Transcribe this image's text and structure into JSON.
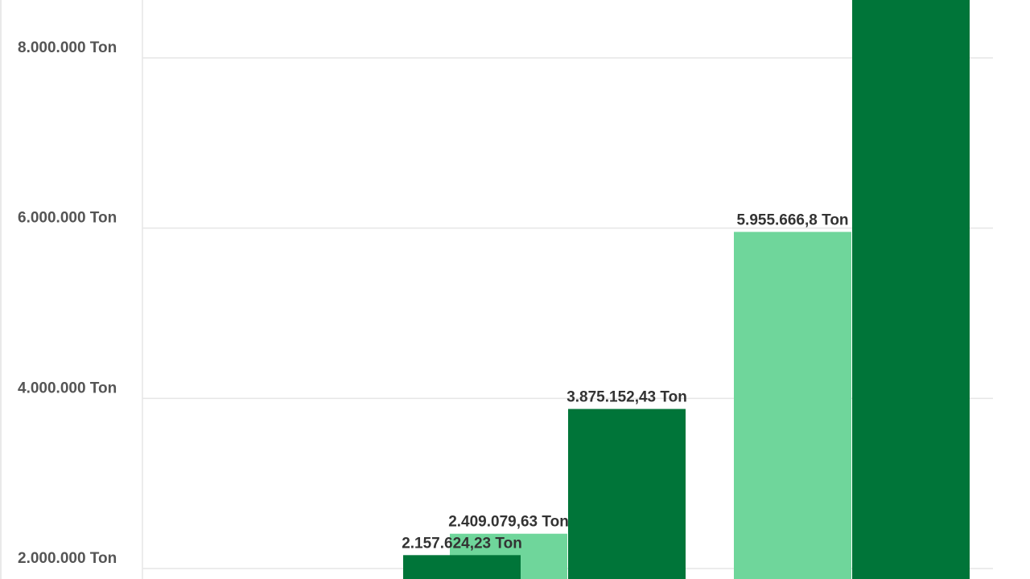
{
  "chart_data": {
    "type": "bar",
    "title": "",
    "xlabel": "",
    "ylabel": "",
    "unit": "Ton",
    "ylim": [
      1850000,
      9000000
    ],
    "yticks": [
      {
        "value": 2000000,
        "label": "2.000.000 Ton"
      },
      {
        "value": 4000000,
        "label": "4.000.000 Ton"
      },
      {
        "value": 6000000,
        "label": "6.000.000 Ton"
      },
      {
        "value": 8000000,
        "label": "8.000.000 Ton"
      }
    ],
    "grid": true,
    "categories": [
      "",
      "",
      "",
      ""
    ],
    "series": [
      {
        "color": "#6fd69b",
        "values": [
          null,
          2409079.63,
          5955666.8,
          null
        ],
        "labels": [
          "",
          "2.409.079,63 Ton",
          "5.955.666,8 Ton",
          ""
        ]
      },
      {
        "color": "#007539",
        "values": [
          2157624.23,
          3875152.43,
          8700000,
          null
        ],
        "labels": [
          "2.157.624,23 Ton",
          "3.875.152,43 Ton",
          "",
          ""
        ]
      }
    ]
  }
}
